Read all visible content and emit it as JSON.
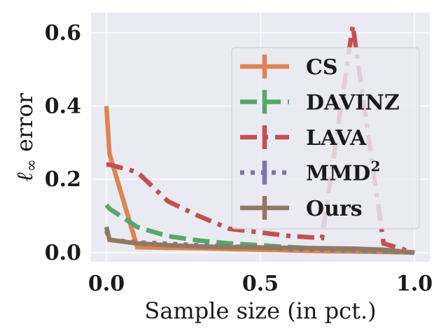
{
  "chart_data": {
    "type": "line",
    "title": "",
    "xlabel": "Sample size (in pct.)",
    "ylabel_prefix": "ℓ",
    "ylabel_sub": "∞",
    "ylabel_suffix": " error",
    "xlim": [
      -0.05,
      1.05
    ],
    "ylim": [
      -0.025,
      0.655
    ],
    "xticks": [
      0.0,
      0.5,
      1.0
    ],
    "xtick_labels": [
      "0.0",
      "0.5",
      "1.0"
    ],
    "yticks": [
      0.0,
      0.2,
      0.4,
      0.6
    ],
    "ytick_labels": [
      "0.0",
      "0.2",
      "0.4",
      "0.6"
    ],
    "grid": true,
    "legend_position": "right",
    "series": [
      {
        "name": "CS",
        "legend": "CS",
        "color": "#dd8452",
        "dash": "solid",
        "x": [
          0.0,
          0.01,
          0.1,
          0.2,
          0.3,
          0.4,
          0.5,
          0.6,
          0.7,
          0.8,
          0.9,
          1.0
        ],
        "y": [
          0.4,
          0.27,
          0.015,
          0.013,
          0.012,
          0.01,
          0.008,
          0.006,
          0.004,
          0.003,
          0.002,
          0.0
        ]
      },
      {
        "name": "DAVINZ",
        "legend": "DAVINZ",
        "color": "#55a868",
        "dash": "dashed",
        "x": [
          0.0,
          0.01,
          0.1,
          0.2,
          0.3,
          0.4,
          0.5,
          0.6,
          0.7,
          0.8,
          0.9,
          1.0
        ],
        "y": [
          0.13,
          0.12,
          0.07,
          0.045,
          0.033,
          0.025,
          0.02,
          0.015,
          0.011,
          0.008,
          0.004,
          0.0
        ]
      },
      {
        "name": "LAVA",
        "legend": "LAVA",
        "color": "#c44e52",
        "dash": "dashdot",
        "x": [
          0.0,
          0.01,
          0.1,
          0.2,
          0.3,
          0.4,
          0.5,
          0.6,
          0.7,
          0.8,
          0.9,
          1.0
        ],
        "y": [
          0.24,
          0.24,
          0.22,
          0.14,
          0.1,
          0.065,
          0.055,
          0.045,
          0.04,
          0.62,
          0.025,
          0.0
        ]
      },
      {
        "name": "MMD2",
        "legend_base": "MMD",
        "legend_sup": "2",
        "color": "#8172b3",
        "dash": "dotted",
        "x": [
          0.0,
          0.01,
          0.1,
          0.2,
          0.3,
          0.4,
          0.5,
          0.6,
          0.7,
          0.8,
          0.9,
          1.0
        ],
        "y": [
          0.06,
          0.035,
          0.028,
          0.024,
          0.02,
          0.017,
          0.014,
          0.01,
          0.008,
          0.006,
          0.004,
          0.0
        ]
      },
      {
        "name": "Ours",
        "legend": "Ours",
        "color": "#937860",
        "dash": "solid",
        "x": [
          0.0,
          0.01,
          0.1,
          0.2,
          0.3,
          0.4,
          0.5,
          0.6,
          0.7,
          0.8,
          0.9,
          1.0
        ],
        "y": [
          0.07,
          0.035,
          0.025,
          0.02,
          0.017,
          0.015,
          0.014,
          0.013,
          0.012,
          0.011,
          0.008,
          0.0
        ]
      }
    ]
  }
}
